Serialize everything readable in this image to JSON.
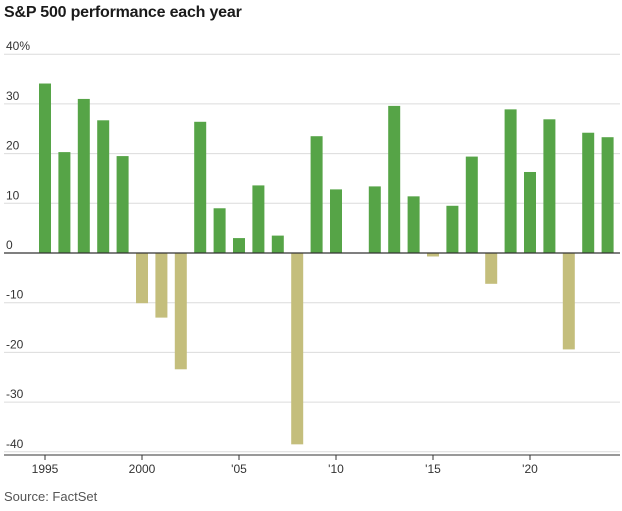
{
  "title": "S&P 500 performance each year",
  "source": "Source: FactSet",
  "colors": {
    "positive": "#56a447",
    "negative": "#c4be7c",
    "grid": "#dcdcdc",
    "axis": "#333333"
  },
  "chart_data": {
    "type": "bar",
    "title": "S&P 500 performance each year",
    "xlabel": "",
    "ylabel": "",
    "ylim": [
      -40,
      40
    ],
    "grid": true,
    "y_ticks": [
      {
        "value": 40,
        "label": "40%"
      },
      {
        "value": 30,
        "label": "30"
      },
      {
        "value": 20,
        "label": "20"
      },
      {
        "value": 10,
        "label": "10"
      },
      {
        "value": 0,
        "label": "0"
      },
      {
        "value": -10,
        "label": "-10"
      },
      {
        "value": -20,
        "label": "-20"
      },
      {
        "value": -30,
        "label": "-30"
      },
      {
        "value": -40,
        "label": "-40"
      }
    ],
    "x_ticks": [
      {
        "value": 1995,
        "label": "1995"
      },
      {
        "value": 2000,
        "label": "2000"
      },
      {
        "value": 2005,
        "label": "'05"
      },
      {
        "value": 2010,
        "label": "'10"
      },
      {
        "value": 2015,
        "label": "'15"
      },
      {
        "value": 2020,
        "label": "'20"
      }
    ],
    "categories": [
      1995,
      1996,
      1997,
      1998,
      1999,
      2000,
      2001,
      2002,
      2003,
      2004,
      2005,
      2006,
      2007,
      2008,
      2009,
      2010,
      2011,
      2012,
      2013,
      2014,
      2015,
      2016,
      2017,
      2018,
      2019,
      2020,
      2021,
      2022,
      2023,
      2024
    ],
    "values": [
      34.1,
      20.3,
      31.0,
      26.7,
      19.5,
      -10.1,
      -13.0,
      -23.4,
      26.4,
      9.0,
      3.0,
      13.6,
      3.5,
      -38.5,
      23.5,
      12.8,
      0.0,
      13.4,
      29.6,
      11.4,
      -0.7,
      9.5,
      19.4,
      -6.2,
      28.9,
      16.3,
      26.9,
      -19.4,
      24.2,
      23.3
    ]
  }
}
